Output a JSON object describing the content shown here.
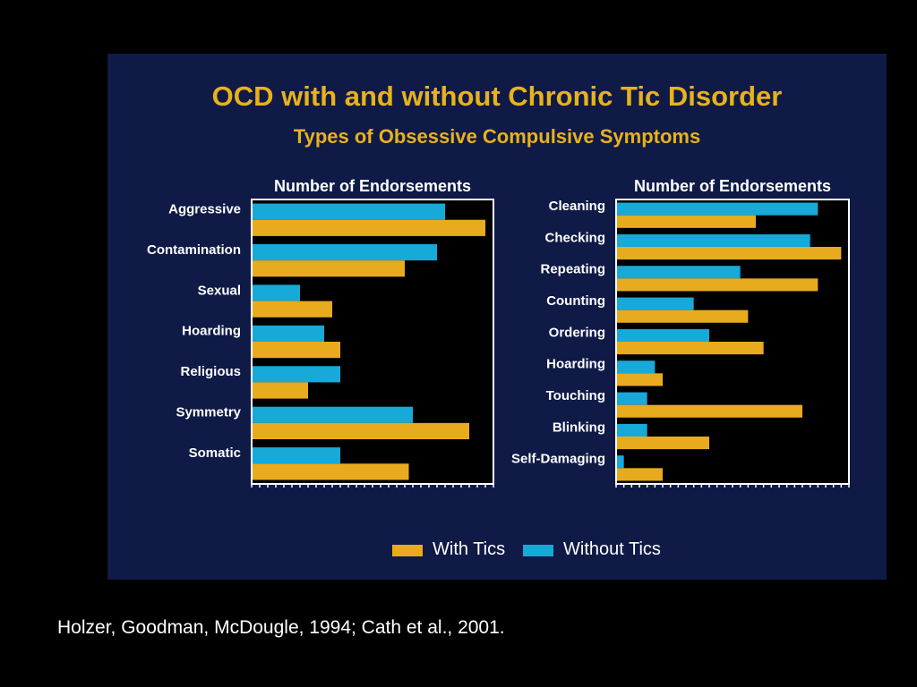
{
  "slide": {
    "title": "OCD with and without Chronic Tic Disorder",
    "subtitle": "Types of Obsessive Compulsive Symptoms",
    "citation": "Holzer, Goodman, McDougle, 1994; Cath et al., 2001."
  },
  "colors": {
    "slide_background": "#0f1a47",
    "plot_background": "#000000",
    "title_text": "#e8b21b",
    "label_text": "#ffffff",
    "with_tics": "#e8ab1e",
    "without_tics": "#17a9d8"
  },
  "legend": {
    "placement": "bottom-center",
    "with_label": "With Tics",
    "without_label": "Without Tics"
  },
  "chart_data": [
    {
      "type": "bar",
      "orientation": "horizontal",
      "title": "Number of Endorsements",
      "categories": [
        "Aggressive",
        "Contamination",
        "Sexual",
        "Hoarding",
        "Religious",
        "Symmetry",
        "Somatic"
      ],
      "series": [
        {
          "name": "Without Tics",
          "values": [
            24,
            23,
            6,
            9,
            11,
            20,
            11
          ]
        },
        {
          "name": "With Tics",
          "values": [
            29,
            19,
            10,
            11,
            7,
            27,
            19.5
          ]
        }
      ],
      "xlim": [
        0,
        30
      ],
      "xticks": [
        0,
        5,
        10,
        15,
        20,
        25,
        30
      ],
      "grid": false
    },
    {
      "type": "bar",
      "orientation": "horizontal",
      "title": "Number of Endorsements",
      "categories": [
        "Cleaning",
        "Checking",
        "Repeating",
        "Counting",
        "Ordering",
        "Hoarding",
        "Touching",
        "Blinking",
        "Self-Damaging"
      ],
      "series": [
        {
          "name": "Without Tics",
          "values": [
            26,
            25,
            16,
            10,
            12,
            5,
            4,
            4,
            1
          ]
        },
        {
          "name": "With Tics",
          "values": [
            18,
            29,
            26,
            17,
            19,
            6,
            24,
            12,
            6
          ]
        }
      ],
      "xlim": [
        0,
        30
      ],
      "xticks": [
        0,
        5,
        10,
        15,
        20,
        25,
        30
      ],
      "grid": false
    }
  ]
}
